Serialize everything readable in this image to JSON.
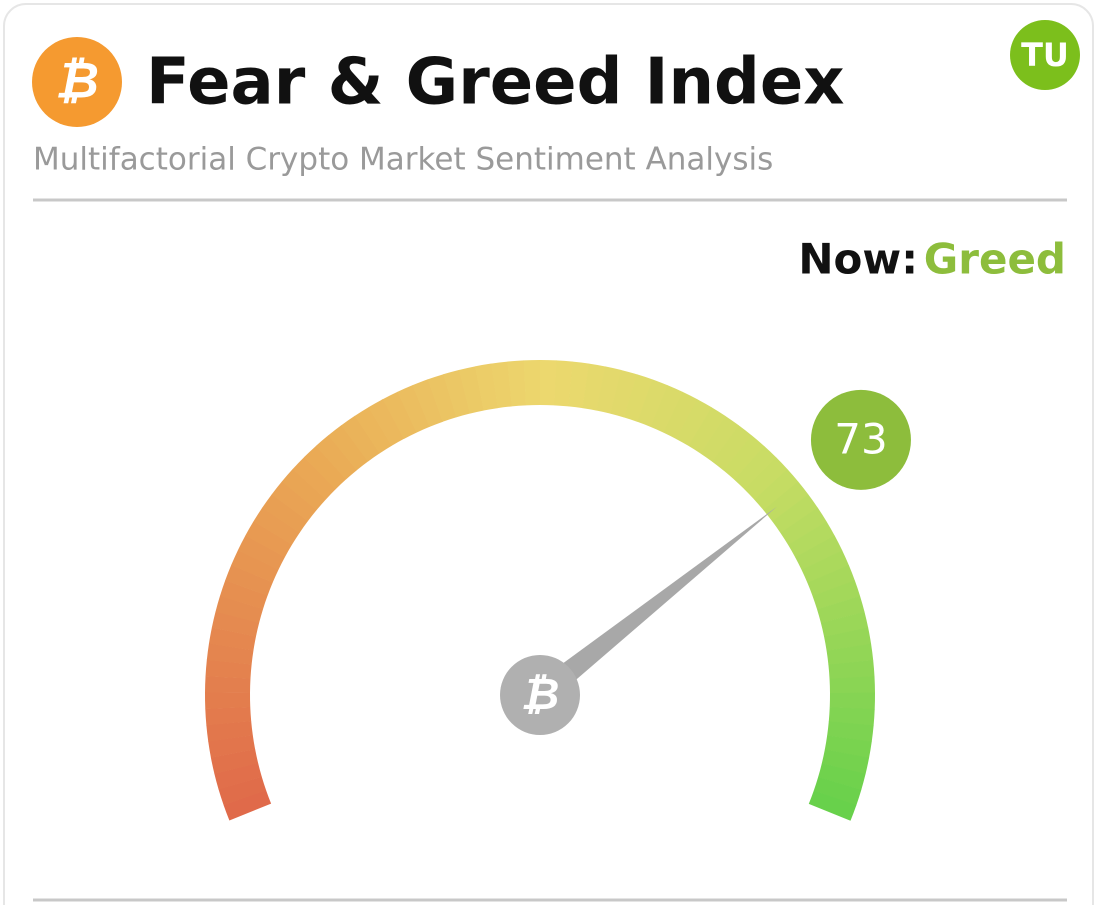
{
  "chart_data": {
    "type": "gauge",
    "title": "Fear & Greed Index",
    "subtitle": "Multifactorial Crypto Market Sentiment Analysis",
    "now_label": "Now:",
    "classification": "Greed",
    "value": 73,
    "ylim": [
      0,
      100
    ],
    "color": "#8dbd3c",
    "watermark": "TU"
  }
}
